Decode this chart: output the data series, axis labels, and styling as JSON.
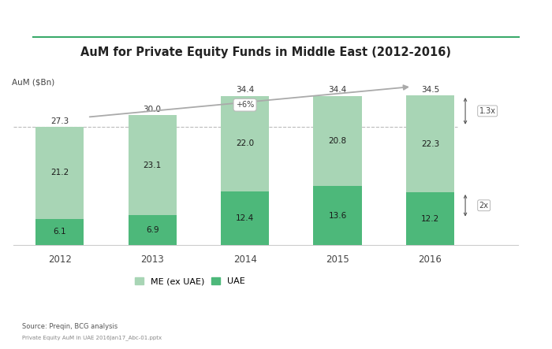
{
  "title": "AuM for Private Equity Funds in Middle East (2012-2016)",
  "ylabel": "AuM ($Bn)",
  "years": [
    "2012",
    "2013",
    "2014",
    "2015",
    "2016"
  ],
  "me_ex_uae": [
    21.2,
    23.1,
    22.0,
    20.8,
    22.3
  ],
  "uae": [
    6.1,
    6.9,
    12.4,
    13.6,
    12.2
  ],
  "totals": [
    27.3,
    30.0,
    34.4,
    34.4,
    34.5
  ],
  "color_me": "#a8d5b5",
  "color_uae": "#4db87a",
  "bar_width": 0.52,
  "ylim": [
    0,
    40
  ],
  "bg_color": "#ffffff",
  "cagr_label": "+6%",
  "arrow_label_1": "1.3x",
  "arrow_label_2": "2x",
  "source_text": "Source: Preqin, BCG analysis",
  "source_text2": "Private Equity AuM in UAE 2016Jan17_Abc-01.pptx",
  "title_underline_color": "#3aaa6a",
  "dotted_line_y": 27.3,
  "legend_me_label": "ME (ex UAE)",
  "legend_uae_label": "UAE"
}
